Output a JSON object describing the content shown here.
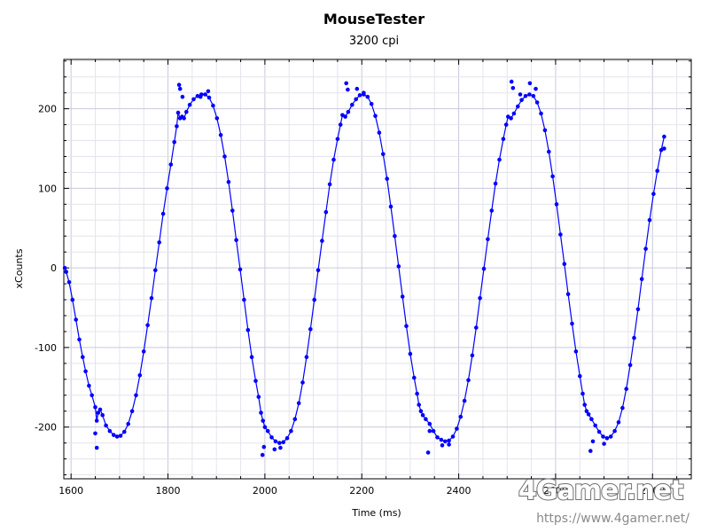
{
  "chart_data": {
    "type": "line",
    "title": "MouseTester",
    "subtitle": "3200 cpi",
    "xlabel": "Time (ms)",
    "ylabel": "xCounts",
    "xlim": [
      1585,
      2880
    ],
    "ylim": [
      -265,
      262
    ],
    "x_ticks": [
      1600,
      1800,
      2000,
      2200,
      2400,
      2600,
      2800
    ],
    "y_ticks": [
      -200,
      -100,
      0,
      100,
      200
    ],
    "grid": true,
    "legend": "none",
    "series": [
      {
        "color": "#0000ff",
        "points": [
          [
            1587,
            0
          ],
          [
            1590,
            -5
          ],
          [
            1596,
            -18
          ],
          [
            1603,
            -40
          ],
          [
            1610,
            -65
          ],
          [
            1617,
            -90
          ],
          [
            1624,
            -112
          ],
          [
            1630,
            -130
          ],
          [
            1637,
            -148
          ],
          [
            1643,
            -160
          ],
          [
            1650,
            -175
          ],
          [
            1653,
            -192
          ],
          [
            1656,
            -182
          ],
          [
            1660,
            -178
          ],
          [
            1665,
            -185
          ],
          [
            1672,
            -198
          ],
          [
            1680,
            -205
          ],
          [
            1688,
            -210
          ],
          [
            1695,
            -212
          ],
          [
            1702,
            -211
          ],
          [
            1710,
            -206
          ],
          [
            1718,
            -196
          ],
          [
            1726,
            -180
          ],
          [
            1734,
            -160
          ],
          [
            1742,
            -135
          ],
          [
            1750,
            -105
          ],
          [
            1758,
            -72
          ],
          [
            1766,
            -38
          ],
          [
            1774,
            -3
          ],
          [
            1782,
            32
          ],
          [
            1790,
            68
          ],
          [
            1798,
            100
          ],
          [
            1806,
            130
          ],
          [
            1813,
            158
          ],
          [
            1818,
            178
          ],
          [
            1821,
            195
          ],
          [
            1825,
            188
          ],
          [
            1829,
            190
          ],
          [
            1833,
            188
          ],
          [
            1838,
            196
          ],
          [
            1845,
            205
          ],
          [
            1853,
            212
          ],
          [
            1861,
            216
          ],
          [
            1869,
            218
          ],
          [
            1877,
            218
          ],
          [
            1885,
            214
          ],
          [
            1893,
            204
          ],
          [
            1901,
            188
          ],
          [
            1909,
            167
          ],
          [
            1917,
            140
          ],
          [
            1925,
            108
          ],
          [
            1933,
            72
          ],
          [
            1941,
            35
          ],
          [
            1949,
            -2
          ],
          [
            1957,
            -40
          ],
          [
            1965,
            -78
          ],
          [
            1973,
            -112
          ],
          [
            1981,
            -142
          ],
          [
            1987,
            -162
          ],
          [
            1992,
            -182
          ],
          [
            1996,
            -192
          ],
          [
            2000,
            -200
          ],
          [
            2006,
            -205
          ],
          [
            2014,
            -213
          ],
          [
            2022,
            -218
          ],
          [
            2030,
            -220
          ],
          [
            2038,
            -219
          ],
          [
            2046,
            -214
          ],
          [
            2054,
            -205
          ],
          [
            2062,
            -190
          ],
          [
            2070,
            -170
          ],
          [
            2078,
            -144
          ],
          [
            2086,
            -112
          ],
          [
            2094,
            -77
          ],
          [
            2102,
            -40
          ],
          [
            2110,
            -3
          ],
          [
            2118,
            34
          ],
          [
            2126,
            70
          ],
          [
            2134,
            105
          ],
          [
            2142,
            136
          ],
          [
            2150,
            162
          ],
          [
            2156,
            180
          ],
          [
            2160,
            192
          ],
          [
            2166,
            190
          ],
          [
            2172,
            196
          ],
          [
            2180,
            205
          ],
          [
            2188,
            212
          ],
          [
            2196,
            217
          ],
          [
            2204,
            218
          ],
          [
            2212,
            215
          ],
          [
            2220,
            206
          ],
          [
            2228,
            191
          ],
          [
            2236,
            170
          ],
          [
            2244,
            143
          ],
          [
            2252,
            112
          ],
          [
            2260,
            77
          ],
          [
            2268,
            40
          ],
          [
            2276,
            2
          ],
          [
            2284,
            -36
          ],
          [
            2292,
            -73
          ],
          [
            2300,
            -108
          ],
          [
            2308,
            -138
          ],
          [
            2314,
            -158
          ],
          [
            2318,
            -172
          ],
          [
            2322,
            -180
          ],
          [
            2326,
            -185
          ],
          [
            2332,
            -190
          ],
          [
            2340,
            -196
          ],
          [
            2348,
            -205
          ],
          [
            2356,
            -213
          ],
          [
            2364,
            -216
          ],
          [
            2372,
            -218
          ],
          [
            2380,
            -217
          ],
          [
            2388,
            -212
          ],
          [
            2396,
            -202
          ],
          [
            2404,
            -187
          ],
          [
            2412,
            -167
          ],
          [
            2420,
            -141
          ],
          [
            2428,
            -110
          ],
          [
            2436,
            -75
          ],
          [
            2444,
            -38
          ],
          [
            2452,
            -1
          ],
          [
            2460,
            36
          ],
          [
            2468,
            72
          ],
          [
            2476,
            106
          ],
          [
            2484,
            136
          ],
          [
            2492,
            162
          ],
          [
            2498,
            180
          ],
          [
            2502,
            190
          ],
          [
            2508,
            188
          ],
          [
            2514,
            194
          ],
          [
            2522,
            203
          ],
          [
            2530,
            211
          ],
          [
            2538,
            216
          ],
          [
            2546,
            218
          ],
          [
            2554,
            216
          ],
          [
            2562,
            208
          ],
          [
            2570,
            194
          ],
          [
            2578,
            173
          ],
          [
            2586,
            146
          ],
          [
            2594,
            115
          ],
          [
            2602,
            80
          ],
          [
            2610,
            42
          ],
          [
            2618,
            5
          ],
          [
            2626,
            -33
          ],
          [
            2634,
            -70
          ],
          [
            2642,
            -105
          ],
          [
            2650,
            -136
          ],
          [
            2656,
            -158
          ],
          [
            2660,
            -172
          ],
          [
            2664,
            -180
          ],
          [
            2668,
            -184
          ],
          [
            2674,
            -190
          ],
          [
            2682,
            -198
          ],
          [
            2690,
            -206
          ],
          [
            2698,
            -212
          ],
          [
            2706,
            -214
          ],
          [
            2714,
            -212
          ],
          [
            2722,
            -205
          ],
          [
            2730,
            -194
          ],
          [
            2738,
            -176
          ],
          [
            2746,
            -152
          ],
          [
            2754,
            -122
          ],
          [
            2762,
            -88
          ],
          [
            2770,
            -52
          ],
          [
            2778,
            -14
          ],
          [
            2786,
            24
          ],
          [
            2794,
            60
          ],
          [
            2802,
            93
          ],
          [
            2810,
            122
          ],
          [
            2818,
            148
          ],
          [
            2824,
            165
          ]
        ],
        "outliers": [
          [
            1653,
            -226
          ],
          [
            1650,
            -208
          ],
          [
            1823,
            230
          ],
          [
            1825,
            225
          ],
          [
            1830,
            215
          ],
          [
            1867,
            215
          ],
          [
            1883,
            222
          ],
          [
            1995,
            -235
          ],
          [
            1998,
            -225
          ],
          [
            2020,
            -228
          ],
          [
            2032,
            -226
          ],
          [
            2168,
            232
          ],
          [
            2171,
            224
          ],
          [
            2190,
            225
          ],
          [
            2204,
            220
          ],
          [
            2337,
            -232
          ],
          [
            2340,
            -205
          ],
          [
            2366,
            -223
          ],
          [
            2380,
            -222
          ],
          [
            2509,
            234
          ],
          [
            2512,
            226
          ],
          [
            2527,
            218
          ],
          [
            2547,
            232
          ],
          [
            2559,
            225
          ],
          [
            2672,
            -230
          ],
          [
            2677,
            -218
          ],
          [
            2700,
            -221
          ],
          [
            2824,
            150
          ]
        ]
      }
    ]
  },
  "watermark": {
    "brand": "4Gamer.net",
    "url": "https://www.4gamer.net/"
  }
}
